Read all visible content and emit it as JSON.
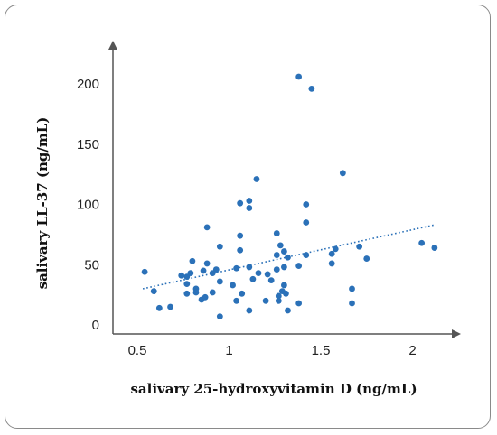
{
  "chart_data": {
    "type": "scatter",
    "title": "",
    "xlabel": "salivary 25-hydroxyvitamin D (ng/mL)",
    "ylabel": "salivary LL-37 (ng/mL)",
    "xlim": [
      0.4,
      2.25
    ],
    "ylim": [
      0,
      230
    ],
    "x_ticks": [
      "0.5",
      "1",
      "1.5",
      "2"
    ],
    "x_tick_values": [
      0.5,
      1,
      1.5,
      2
    ],
    "y_ticks": [
      "0",
      "50",
      "100",
      "150",
      "200"
    ],
    "y_tick_values": [
      0,
      50,
      100,
      150,
      200
    ],
    "grid": false,
    "point_color": "#2b71b8",
    "trendline": {
      "style": "dotted",
      "color": "#2b71b8",
      "x": [
        0.53,
        2.12
      ],
      "y": [
        30,
        83
      ]
    },
    "points": [
      {
        "x": 0.54,
        "y": 44
      },
      {
        "x": 0.59,
        "y": 28
      },
      {
        "x": 0.62,
        "y": 14
      },
      {
        "x": 0.68,
        "y": 15
      },
      {
        "x": 0.74,
        "y": 41
      },
      {
        "x": 0.77,
        "y": 40
      },
      {
        "x": 0.77,
        "y": 34
      },
      {
        "x": 0.77,
        "y": 26
      },
      {
        "x": 0.79,
        "y": 43
      },
      {
        "x": 0.8,
        "y": 53
      },
      {
        "x": 0.82,
        "y": 30
      },
      {
        "x": 0.82,
        "y": 27
      },
      {
        "x": 0.85,
        "y": 21
      },
      {
        "x": 0.86,
        "y": 45
      },
      {
        "x": 0.87,
        "y": 23
      },
      {
        "x": 0.88,
        "y": 81
      },
      {
        "x": 0.88,
        "y": 51
      },
      {
        "x": 0.91,
        "y": 27
      },
      {
        "x": 0.91,
        "y": 43
      },
      {
        "x": 0.93,
        "y": 46
      },
      {
        "x": 0.95,
        "y": 65
      },
      {
        "x": 0.95,
        "y": 36
      },
      {
        "x": 0.95,
        "y": 7
      },
      {
        "x": 1.02,
        "y": 33
      },
      {
        "x": 1.04,
        "y": 47
      },
      {
        "x": 1.04,
        "y": 20
      },
      {
        "x": 1.06,
        "y": 101
      },
      {
        "x": 1.06,
        "y": 74
      },
      {
        "x": 1.06,
        "y": 62
      },
      {
        "x": 1.07,
        "y": 26
      },
      {
        "x": 1.11,
        "y": 103
      },
      {
        "x": 1.11,
        "y": 97
      },
      {
        "x": 1.11,
        "y": 48
      },
      {
        "x": 1.11,
        "y": 12
      },
      {
        "x": 1.13,
        "y": 38
      },
      {
        "x": 1.15,
        "y": 121
      },
      {
        "x": 1.16,
        "y": 43
      },
      {
        "x": 1.2,
        "y": 20
      },
      {
        "x": 1.21,
        "y": 42
      },
      {
        "x": 1.23,
        "y": 37
      },
      {
        "x": 1.26,
        "y": 76
      },
      {
        "x": 1.26,
        "y": 58
      },
      {
        "x": 1.26,
        "y": 46
      },
      {
        "x": 1.27,
        "y": 24
      },
      {
        "x": 1.27,
        "y": 20
      },
      {
        "x": 1.28,
        "y": 66
      },
      {
        "x": 1.29,
        "y": 28
      },
      {
        "x": 1.3,
        "y": 61
      },
      {
        "x": 1.3,
        "y": 48
      },
      {
        "x": 1.3,
        "y": 33
      },
      {
        "x": 1.31,
        "y": 26
      },
      {
        "x": 1.32,
        "y": 56
      },
      {
        "x": 1.32,
        "y": 12
      },
      {
        "x": 1.38,
        "y": 206
      },
      {
        "x": 1.38,
        "y": 49
      },
      {
        "x": 1.38,
        "y": 18
      },
      {
        "x": 1.42,
        "y": 100
      },
      {
        "x": 1.42,
        "y": 85
      },
      {
        "x": 1.42,
        "y": 58
      },
      {
        "x": 1.45,
        "y": 196
      },
      {
        "x": 1.56,
        "y": 59
      },
      {
        "x": 1.56,
        "y": 51
      },
      {
        "x": 1.58,
        "y": 63
      },
      {
        "x": 1.62,
        "y": 126
      },
      {
        "x": 1.67,
        "y": 30
      },
      {
        "x": 1.67,
        "y": 18
      },
      {
        "x": 1.71,
        "y": 65
      },
      {
        "x": 1.75,
        "y": 55
      },
      {
        "x": 2.05,
        "y": 68
      },
      {
        "x": 2.12,
        "y": 64
      }
    ]
  }
}
